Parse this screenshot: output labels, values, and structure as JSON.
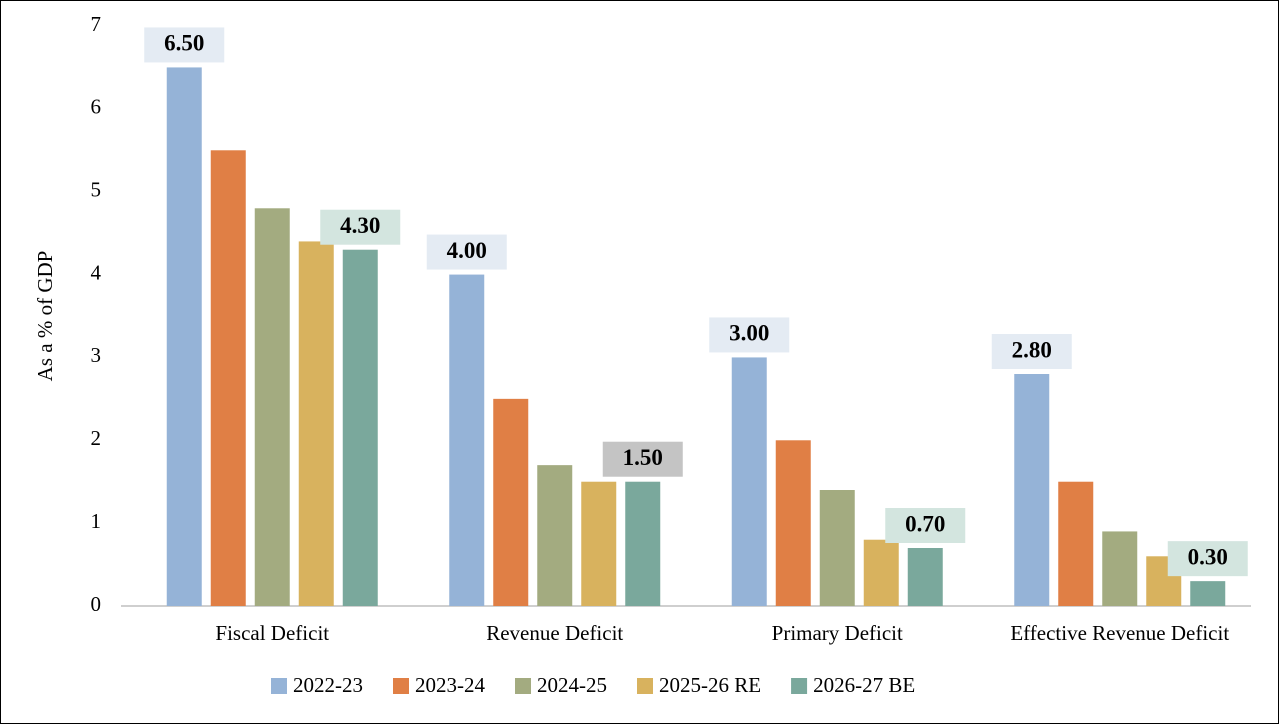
{
  "chart_data": {
    "type": "bar",
    "y_label": "As a % of GDP",
    "categories": [
      "Fiscal Deficit",
      "Revenue Deficit",
      "Primary Deficit",
      "Effective Revenue Deficit"
    ],
    "series": [
      {
        "name": "2022-23",
        "color": "#95b3d7",
        "values": [
          6.5,
          4.0,
          3.0,
          2.8
        ],
        "value_labels": [
          "6.50",
          "4.00",
          "3.00",
          "2.80"
        ],
        "label_backgrounds": [
          "#e4ebf3",
          "#e4ebf3",
          "#e4ebf3",
          "#e4ebf3"
        ]
      },
      {
        "name": "2023-24",
        "color": "#e07f45",
        "values": [
          5.5,
          2.5,
          2.0,
          1.5
        ]
      },
      {
        "name": "2024-25",
        "color": "#a3ab80",
        "values": [
          4.8,
          1.7,
          1.4,
          0.9
        ]
      },
      {
        "name": "2025-26 RE",
        "color": "#d8b25e",
        "values": [
          4.4,
          1.5,
          0.8,
          0.6
        ]
      },
      {
        "name": "2026-27 BE",
        "color": "#7aa89c",
        "values": [
          4.3,
          1.5,
          0.7,
          0.3
        ],
        "value_labels": [
          "4.30",
          "1.50",
          "0.70",
          "0.30"
        ],
        "label_backgrounds": [
          "#d3e5df",
          "#c4c4c4",
          "#d3e5df",
          "#d3e5df"
        ]
      }
    ],
    "ylim": [
      0,
      7
    ],
    "yticks": [
      0,
      1,
      2,
      3,
      4,
      5,
      6,
      7
    ],
    "grid": false,
    "legend": "bottom"
  }
}
